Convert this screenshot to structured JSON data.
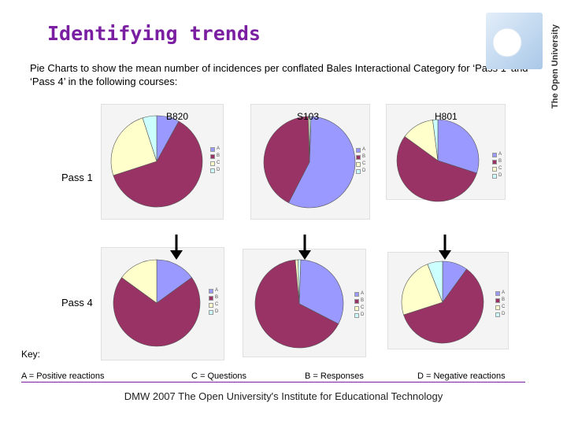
{
  "slide": {
    "title": "Identifying trends",
    "subtitle": "Pie Charts to show the mean number of incidences per conflated Bales Interactional Category for ‘Pass 1’ and ‘Pass 4’ in the following courses:",
    "logo_text": "The Open University",
    "footer": "DMW 2007 The Open University's Institute for Educational Technology"
  },
  "courses": [
    {
      "label": "B820"
    },
    {
      "label": "S103"
    },
    {
      "label": "H801"
    }
  ],
  "passes": [
    {
      "label": "Pass 1"
    },
    {
      "label": "Pass 4"
    }
  ],
  "legend_letters": [
    "A",
    "B",
    "C",
    "D"
  ],
  "key": {
    "title": "Key:",
    "items": [
      {
        "text": "A = Positive reactions"
      },
      {
        "text": "C = Questions"
      },
      {
        "text": "B = Responses"
      },
      {
        "text": "D = Negative reactions"
      }
    ]
  },
  "colors": {
    "A": "#9999ff",
    "B": "#993366",
    "C": "#ffffcc",
    "D": "#ccffff",
    "title": "#7b1fa2",
    "arrow": "#000000"
  },
  "chart_data": [
    {
      "type": "pie",
      "course": "B820",
      "pass": "Pass 1",
      "categories": [
        "A",
        "B",
        "C",
        "D"
      ],
      "values": [
        8,
        62,
        25,
        5
      ]
    },
    {
      "type": "pie",
      "course": "S103",
      "pass": "Pass 1",
      "categories": [
        "A",
        "B",
        "C",
        "D"
      ],
      "values": [
        57,
        42,
        0.5,
        0.5
      ]
    },
    {
      "type": "pie",
      "course": "H801",
      "pass": "Pass 1",
      "categories": [
        "A",
        "B",
        "C",
        "D"
      ],
      "values": [
        30,
        55,
        13,
        2
      ]
    },
    {
      "type": "pie",
      "course": "B820",
      "pass": "Pass 4",
      "categories": [
        "A",
        "B",
        "C",
        "D"
      ],
      "values": [
        15,
        70,
        15,
        0
      ]
    },
    {
      "type": "pie",
      "course": "S103",
      "pass": "Pass 4",
      "categories": [
        "A",
        "B",
        "C",
        "D"
      ],
      "values": [
        32,
        66,
        1,
        1
      ]
    },
    {
      "type": "pie",
      "course": "H801",
      "pass": "Pass 4",
      "categories": [
        "A",
        "B",
        "C",
        "D"
      ],
      "values": [
        10,
        60,
        24,
        6
      ]
    }
  ]
}
